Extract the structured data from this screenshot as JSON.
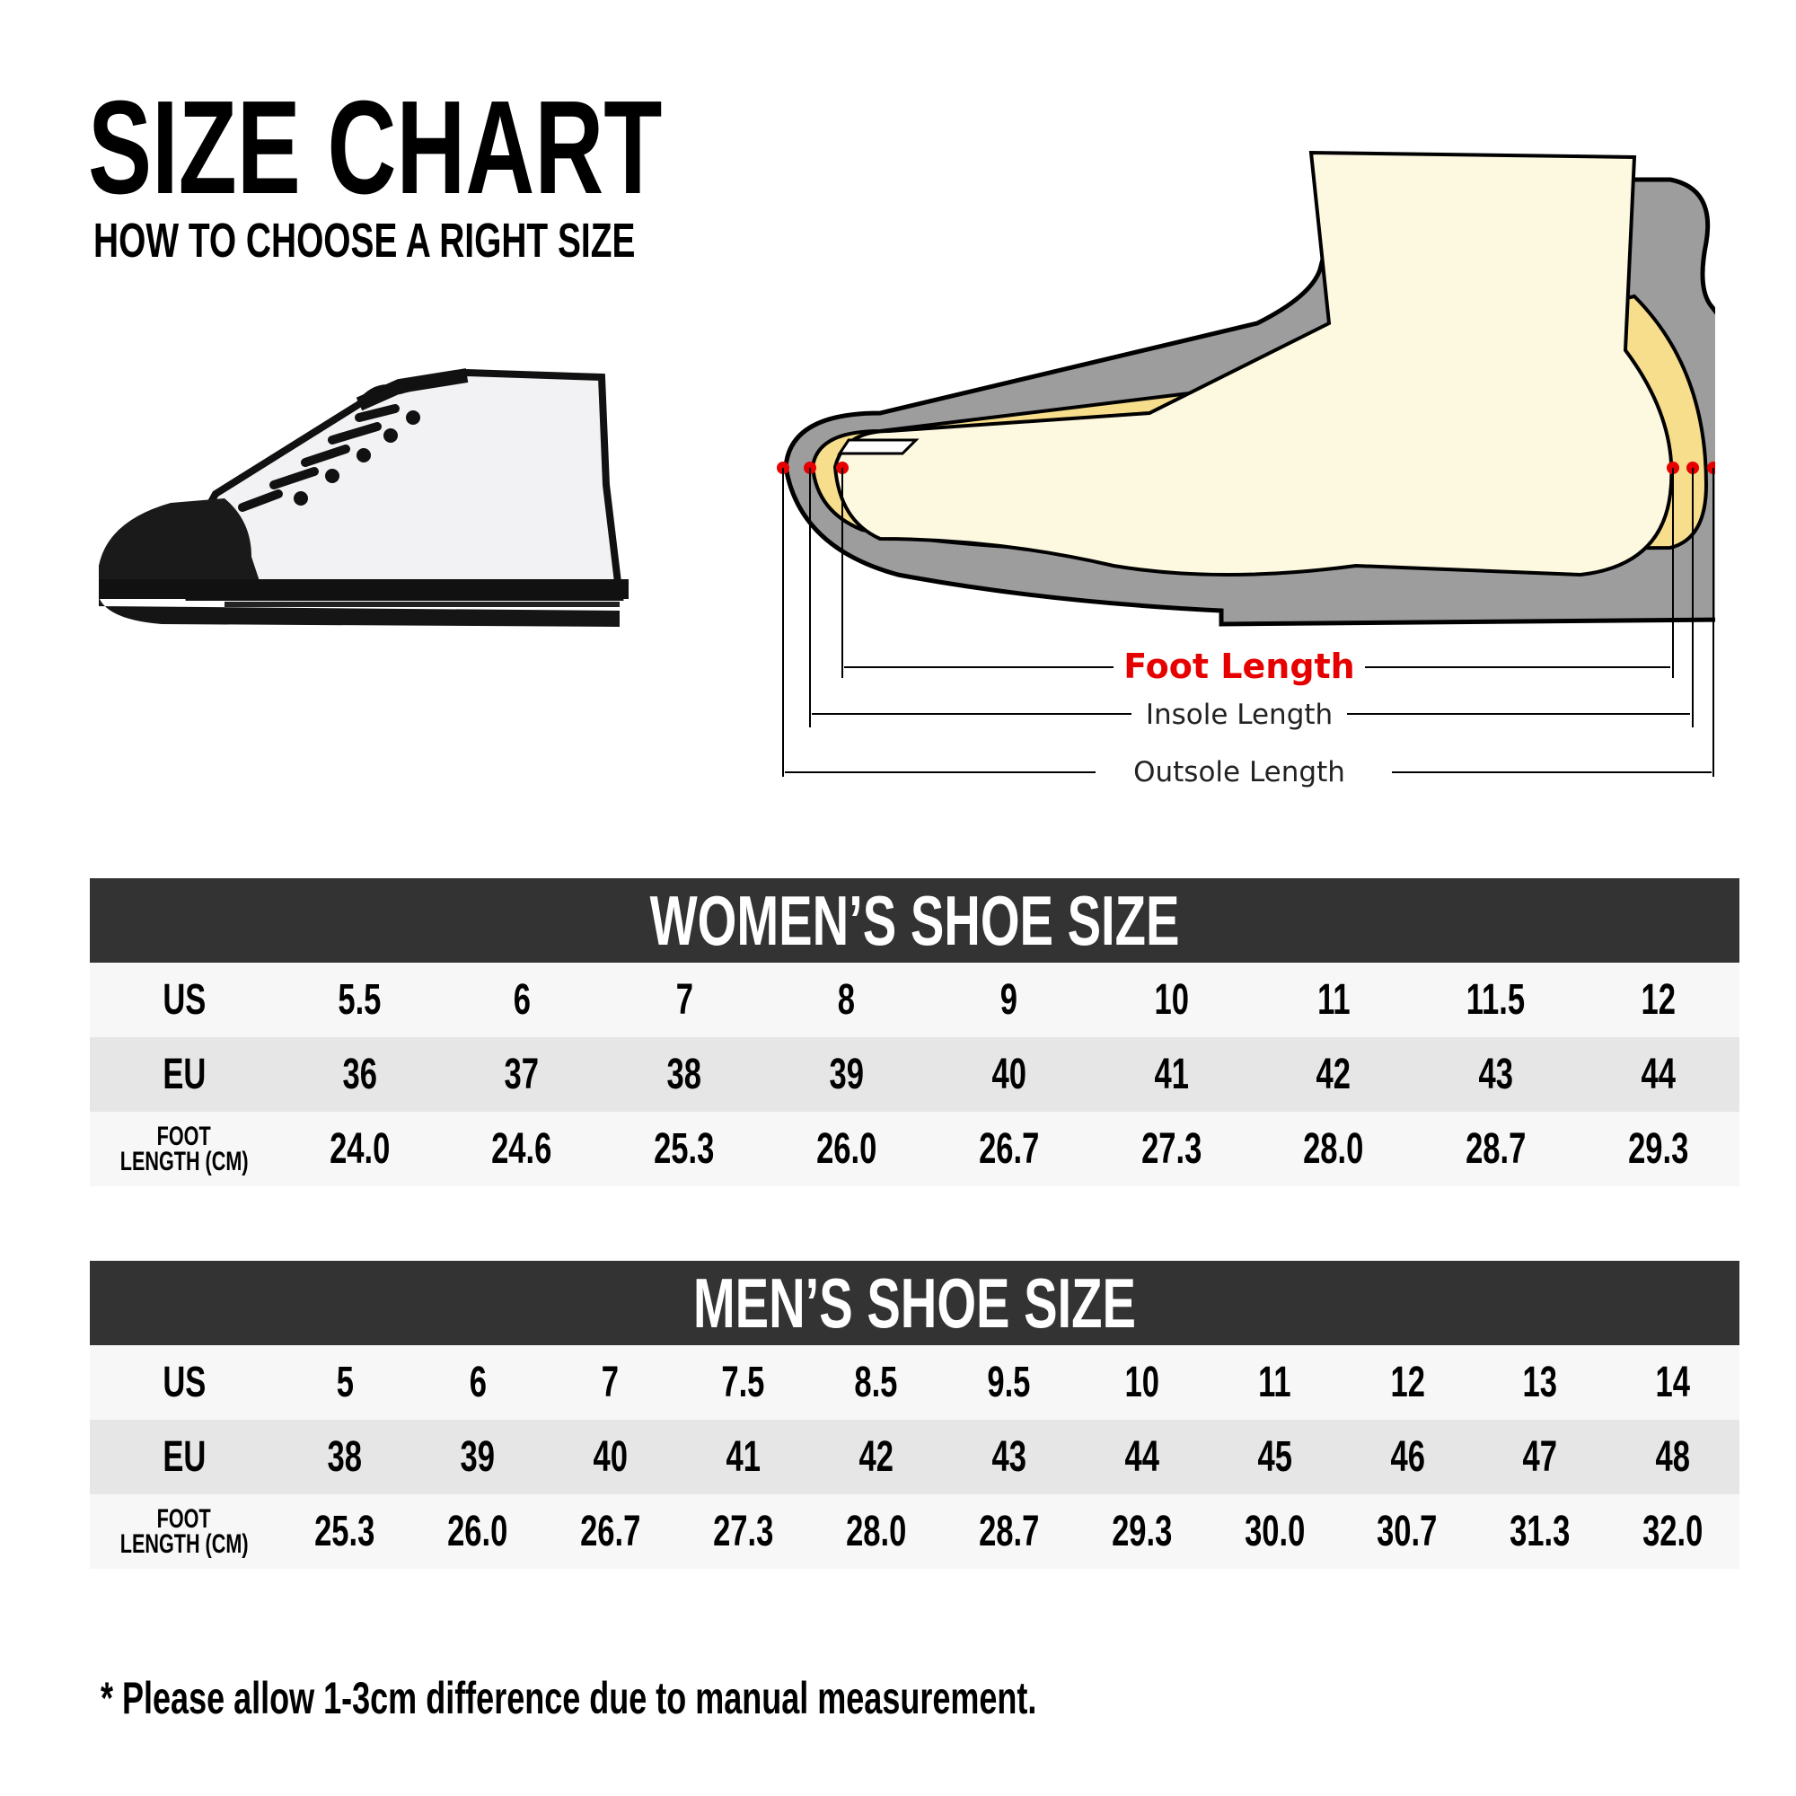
{
  "header": {
    "title": "SIZE CHART",
    "subtitle": "HOW TO CHOOSE A RIGHT SIZE"
  },
  "diagram": {
    "foot_length": "Foot Length",
    "insole_length": "Insole Length",
    "outsole_length": "Outsole Length",
    "accent_color": "#e60000"
  },
  "women": {
    "title": "WOMEN’S SHOE SIZE",
    "labels": {
      "us": "US",
      "eu": "EU",
      "foot1": "FOOT",
      "foot2": "LENGTH (CM)"
    },
    "us": [
      "5.5",
      "6",
      "7",
      "8",
      "9",
      "10",
      "11",
      "11.5",
      "12"
    ],
    "eu": [
      "36",
      "37",
      "38",
      "39",
      "40",
      "41",
      "42",
      "43",
      "44"
    ],
    "cm": [
      "24.0",
      "24.6",
      "25.3",
      "26.0",
      "26.7",
      "27.3",
      "28.0",
      "28.7",
      "29.3"
    ]
  },
  "men": {
    "title": "MEN’S SHOE SIZE",
    "labels": {
      "us": "US",
      "eu": "EU",
      "foot1": "FOOT",
      "foot2": "LENGTH (CM)"
    },
    "us": [
      "5",
      "6",
      "7",
      "7.5",
      "8.5",
      "9.5",
      "10",
      "11",
      "12",
      "13",
      "14"
    ],
    "eu": [
      "38",
      "39",
      "40",
      "41",
      "42",
      "43",
      "44",
      "45",
      "46",
      "47",
      "48"
    ],
    "cm": [
      "25.3",
      "26.0",
      "26.7",
      "27.3",
      "28.0",
      "28.7",
      "29.3",
      "30.0",
      "30.7",
      "31.3",
      "32.0"
    ]
  },
  "footnote": "* Please allow 1-3cm difference due to manual measurement."
}
